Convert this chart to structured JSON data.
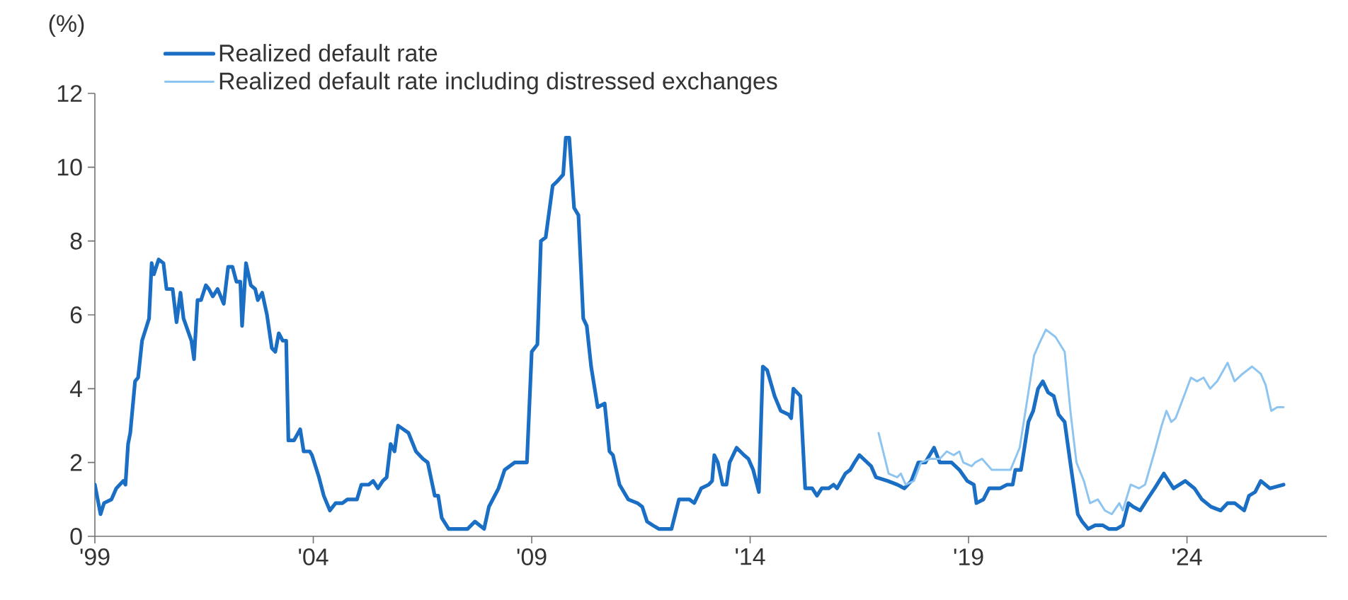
{
  "chart_data": {
    "type": "line",
    "ylabel": "(%)",
    "legend": "top left",
    "xlim": [
      1999,
      2027.2
    ],
    "ylim": [
      0,
      12
    ],
    "xticks": [
      {
        "value": 1999,
        "label": "'99"
      },
      {
        "value": 2004,
        "label": "'04"
      },
      {
        "value": 2009,
        "label": "'09"
      },
      {
        "value": 2014,
        "label": "'14"
      },
      {
        "value": 2019,
        "label": "'19"
      },
      {
        "value": 2024,
        "label": "'24"
      }
    ],
    "yticks": [
      0,
      2,
      4,
      6,
      8,
      10,
      12
    ],
    "series": [
      {
        "name": "Realized default rate",
        "color": "#1a6fc4",
        "x": [
          1999.0,
          1999.13,
          1999.21,
          1999.38,
          1999.49,
          1999.65,
          1999.7,
          1999.76,
          1999.81,
          1999.92,
          1999.99,
          2000.08,
          2000.24,
          2000.3,
          2000.35,
          2000.46,
          2000.57,
          2000.64,
          2000.78,
          2000.87,
          2000.96,
          2001.03,
          2001.21,
          2001.27,
          2001.35,
          2001.43,
          2001.54,
          2001.61,
          2001.7,
          2001.81,
          2001.95,
          2002.05,
          2002.15,
          2002.24,
          2002.33,
          2002.37,
          2002.46,
          2002.57,
          2002.67,
          2002.73,
          2002.83,
          2002.94,
          2003.05,
          2003.13,
          2003.21,
          2003.3,
          2003.38,
          2003.43,
          2003.56,
          2003.7,
          2003.78,
          2003.92,
          2003.97,
          2004.13,
          2004.24,
          2004.38,
          2004.51,
          2004.67,
          2004.78,
          2005.0,
          2005.1,
          2005.27,
          2005.37,
          2005.48,
          2005.59,
          2005.68,
          2005.77,
          2005.86,
          2005.94,
          2006.18,
          2006.35,
          2006.51,
          2006.62,
          2006.78,
          2006.86,
          2006.94,
          2007.1,
          2007.32,
          2007.53,
          2007.7,
          2007.91,
          2008.02,
          2008.24,
          2008.38,
          2008.61,
          2008.72,
          2008.89,
          2009.0,
          2009.13,
          2009.21,
          2009.32,
          2009.48,
          2009.57,
          2009.72,
          2009.78,
          2009.86,
          2009.97,
          2010.07,
          2010.18,
          2010.26,
          2010.36,
          2010.51,
          2010.67,
          2010.78,
          2010.86,
          2011.01,
          2011.21,
          2011.42,
          2011.53,
          2011.64,
          2011.77,
          2011.91,
          2012.13,
          2012.2,
          2012.37,
          2012.61,
          2012.72,
          2012.88,
          2013.05,
          2013.13,
          2013.18,
          2013.26,
          2013.37,
          2013.46,
          2013.53,
          2013.69,
          2013.86,
          2013.96,
          2014.07,
          2014.2,
          2014.29,
          2014.39,
          2014.56,
          2014.7,
          2014.88,
          2014.94,
          2014.99,
          2015.15,
          2015.26,
          2015.42,
          2015.53,
          2015.64,
          2015.8,
          2015.91,
          2015.99,
          2016.18,
          2016.29,
          2016.39,
          2016.5,
          2016.77,
          2016.88,
          2017.15,
          2017.37,
          2017.53,
          2017.69,
          2017.85,
          2018.01,
          2018.21,
          2018.34,
          2018.61,
          2018.79,
          2018.97,
          2019.12,
          2019.18,
          2019.34,
          2019.47,
          2019.72,
          2019.88,
          2020.01,
          2020.07,
          2020.2,
          2020.37,
          2020.48,
          2020.59,
          2020.7,
          2020.82,
          2020.95,
          2021.06,
          2021.2,
          2021.34,
          2021.5,
          2021.6,
          2021.74,
          2021.9,
          2022.07,
          2022.21,
          2022.39,
          2022.53,
          2022.66,
          2022.77,
          2022.93,
          2023.09,
          2023.26,
          2023.47,
          2023.69,
          2023.96,
          2024.17,
          2024.34,
          2024.55,
          2024.77,
          2024.93,
          2025.09,
          2025.31,
          2025.42,
          2025.56,
          2025.69,
          2025.9,
          2026.21
        ],
        "values": [
          1.4,
          0.6,
          0.9,
          1.0,
          1.3,
          1.5,
          1.4,
          2.5,
          2.8,
          4.2,
          4.3,
          5.3,
          5.9,
          7.4,
          7.1,
          7.5,
          7.4,
          6.7,
          6.7,
          5.8,
          6.6,
          5.9,
          5.3,
          4.8,
          6.4,
          6.4,
          6.8,
          6.7,
          6.5,
          6.7,
          6.3,
          7.3,
          7.3,
          6.9,
          6.9,
          5.7,
          7.4,
          6.8,
          6.7,
          6.4,
          6.6,
          6.0,
          5.1,
          5.0,
          5.5,
          5.3,
          5.3,
          2.6,
          2.6,
          2.9,
          2.3,
          2.3,
          2.2,
          1.6,
          1.1,
          0.7,
          0.9,
          0.9,
          1.0,
          1.0,
          1.4,
          1.4,
          1.5,
          1.3,
          1.5,
          1.6,
          2.5,
          2.3,
          3.0,
          2.8,
          2.3,
          2.1,
          2.0,
          1.1,
          1.1,
          0.5,
          0.2,
          0.2,
          0.2,
          0.4,
          0.2,
          0.8,
          1.3,
          1.8,
          2.0,
          2.0,
          2.0,
          5.0,
          5.2,
          8.0,
          8.1,
          9.5,
          9.6,
          9.8,
          10.8,
          10.8,
          8.9,
          8.7,
          5.9,
          5.7,
          4.6,
          3.5,
          3.6,
          2.3,
          2.2,
          1.4,
          1.0,
          0.9,
          0.8,
          0.4,
          0.3,
          0.2,
          0.2,
          0.2,
          1.0,
          1.0,
          0.9,
          1.3,
          1.4,
          1.5,
          2.2,
          2.0,
          1.4,
          1.4,
          2.0,
          2.4,
          2.2,
          2.1,
          1.8,
          1.2,
          4.6,
          4.5,
          3.8,
          3.4,
          3.3,
          3.2,
          4.0,
          3.8,
          1.3,
          1.3,
          1.1,
          1.3,
          1.3,
          1.4,
          1.3,
          1.7,
          1.8,
          2.0,
          2.2,
          1.9,
          1.6,
          1.5,
          1.4,
          1.3,
          1.5,
          2.0,
          2.0,
          2.4,
          2.0,
          2.0,
          1.8,
          1.5,
          1.4,
          0.9,
          1.0,
          1.3,
          1.3,
          1.4,
          1.4,
          1.8,
          1.8,
          3.1,
          3.4,
          4.0,
          4.2,
          3.9,
          3.8,
          3.3,
          3.1,
          1.9,
          0.6,
          0.4,
          0.2,
          0.3,
          0.3,
          0.2,
          0.2,
          0.3,
          0.9,
          0.8,
          0.7,
          1.0,
          1.3,
          1.7,
          1.3,
          1.5,
          1.3,
          1.0,
          0.8,
          0.7,
          0.9,
          0.9,
          0.7,
          1.1,
          1.2,
          1.5,
          1.3,
          1.4
        ]
      },
      {
        "name": "Realized default rate including distressed exchanges",
        "color": "#8ec5f0",
        "x": [
          2016.94,
          2017.17,
          2017.37,
          2017.45,
          2017.56,
          2017.75,
          2017.91,
          2018.13,
          2018.34,
          2018.5,
          2018.66,
          2018.79,
          2018.88,
          2019.07,
          2019.15,
          2019.31,
          2019.53,
          2019.74,
          2019.96,
          2020.17,
          2020.33,
          2020.5,
          2020.61,
          2020.77,
          2020.99,
          2021.2,
          2021.34,
          2021.47,
          2021.64,
          2021.78,
          2021.96,
          2022.12,
          2022.28,
          2022.45,
          2022.53,
          2022.71,
          2022.9,
          2023.04,
          2023.26,
          2023.42,
          2023.53,
          2023.64,
          2023.74,
          2023.9,
          2024.09,
          2024.23,
          2024.38,
          2024.53,
          2024.69,
          2024.93,
          2025.09,
          2025.27,
          2025.49,
          2025.69,
          2025.8,
          2025.93,
          2026.07,
          2026.21
        ],
        "values": [
          2.8,
          1.7,
          1.6,
          1.7,
          1.4,
          1.5,
          2.0,
          2.1,
          2.1,
          2.3,
          2.2,
          2.3,
          2.0,
          1.9,
          2.0,
          2.1,
          1.8,
          1.8,
          1.8,
          2.4,
          3.6,
          4.9,
          5.2,
          5.6,
          5.4,
          5.0,
          3.3,
          2.0,
          1.5,
          0.9,
          1.0,
          0.7,
          0.6,
          0.9,
          0.7,
          1.4,
          1.3,
          1.4,
          2.3,
          3.0,
          3.4,
          3.1,
          3.2,
          3.7,
          4.3,
          4.2,
          4.3,
          4.0,
          4.2,
          4.7,
          4.2,
          4.4,
          4.6,
          4.4,
          4.1,
          3.4,
          3.5,
          3.5
        ]
      }
    ]
  }
}
